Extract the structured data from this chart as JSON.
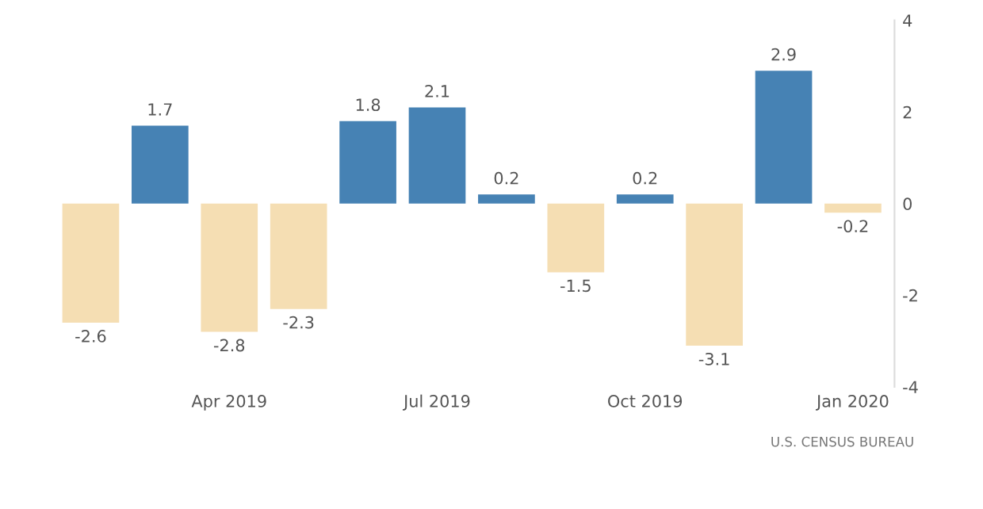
{
  "chart_data": {
    "type": "bar",
    "categories": [
      null,
      null,
      "Apr 2019",
      null,
      null,
      "Jul 2019",
      null,
      null,
      "Oct 2019",
      null,
      null,
      "Jan 2020"
    ],
    "values": [
      -2.6,
      1.7,
      -2.8,
      -2.3,
      1.8,
      2.1,
      0.2,
      -1.5,
      0.2,
      -3.1,
      2.9,
      -0.2
    ],
    "colors": [
      "#f5deb3",
      "#4682b4",
      "#f5deb3",
      "#f5deb3",
      "#4682b4",
      "#4682b4",
      "#4682b4",
      "#f5deb3",
      "#4682b4",
      "#f5deb3",
      "#4682b4",
      "#f5deb3"
    ],
    "ylim": [
      -4,
      4
    ],
    "yticks": [
      -4,
      -2,
      0,
      2,
      4
    ],
    "data_labels": true,
    "grid": false,
    "annotations": [
      "U.S. CENSUS BUREAU"
    ]
  }
}
